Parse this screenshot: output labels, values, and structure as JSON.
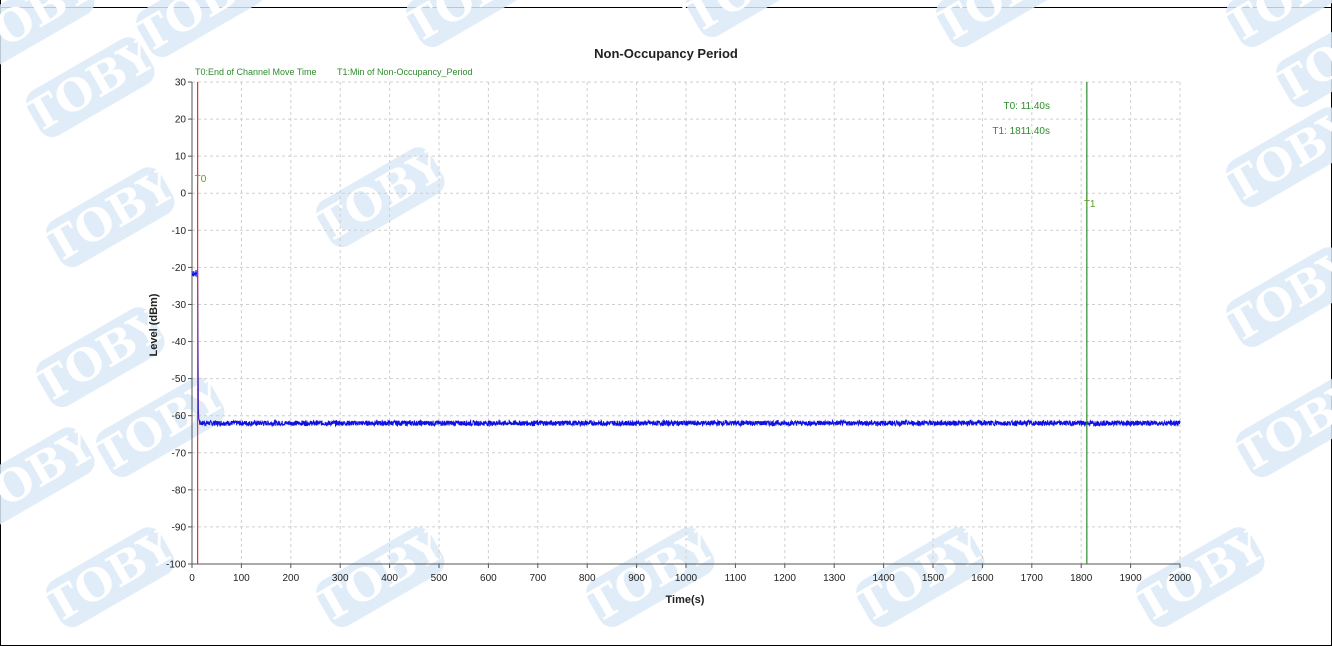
{
  "watermark": {
    "text": "TOBY",
    "color": "#dbeaf7"
  },
  "chart_data": {
    "type": "line",
    "title": "Non-Occupancy Period",
    "xlabel": "Time(s)",
    "ylabel": "Level (dBm)",
    "xlim": [
      0,
      2000
    ],
    "ylim": [
      -100,
      30
    ],
    "x_ticks": [
      0,
      100,
      200,
      300,
      400,
      500,
      600,
      700,
      800,
      900,
      1000,
      1100,
      1200,
      1300,
      1400,
      1500,
      1600,
      1700,
      1800,
      1900,
      2000
    ],
    "y_ticks": [
      30,
      20,
      10,
      0,
      -10,
      -20,
      -30,
      -40,
      -50,
      -60,
      -70,
      -80,
      -90,
      -100
    ],
    "grid": true,
    "series": [
      {
        "color": "#1010e0",
        "points": [
          [
            0,
            -21
          ],
          [
            2,
            -22
          ],
          [
            4,
            -21.5
          ],
          [
            6,
            -22
          ],
          [
            8,
            -21
          ],
          [
            10,
            -22
          ],
          [
            11.4,
            -21.5
          ],
          [
            13,
            -59
          ],
          [
            14,
            -61
          ],
          [
            16,
            -62
          ],
          [
            2000,
            -62
          ]
        ],
        "noise_level": -62
      }
    ],
    "markers": [
      {
        "id": "T0",
        "label": "T0",
        "x": 11.4,
        "color": "#e03030",
        "legend": "T0:End of Channel Move Time",
        "readout": "T0: 11.40s"
      },
      {
        "id": "T1",
        "label": "T1",
        "x": 1811.4,
        "color": "#2e8b2e",
        "legend": "T1:Min of Non-Occupancy_Period",
        "readout": "T1: 1811.40s"
      }
    ]
  }
}
